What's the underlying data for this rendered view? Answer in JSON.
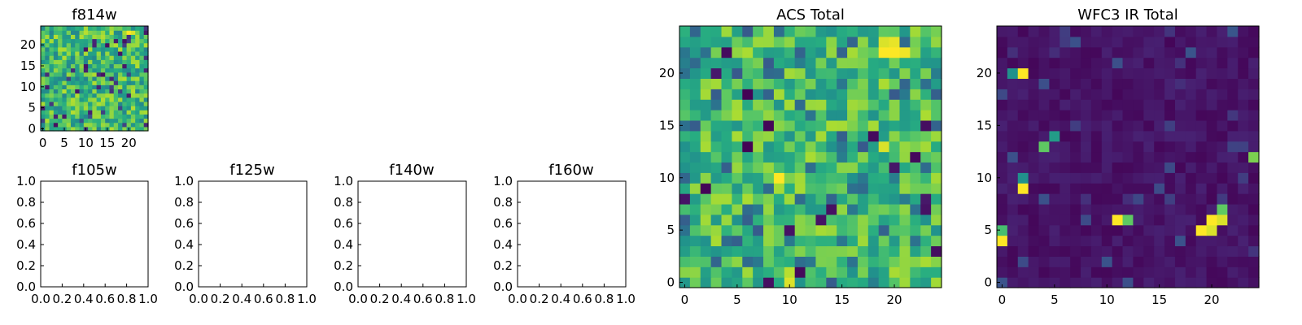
{
  "colors": {
    "background": "#ffffff",
    "frame": "#000000",
    "colormap": "viridis",
    "viridis_low": "#440154",
    "viridis_high": "#fde725"
  },
  "chart_data": [
    {
      "type": "heatmap",
      "title": "f814w",
      "shape": [
        25,
        25
      ],
      "xlim": [
        -0.5,
        24.5
      ],
      "ylim": [
        -0.5,
        24.5
      ],
      "xticks": [
        0,
        5,
        10,
        15,
        20
      ],
      "yticks": [
        0,
        5,
        10,
        15,
        20
      ],
      "colormap": "viridis",
      "description_level": "noise field",
      "hotspots": [
        {
          "x": 20,
          "y": 23,
          "level": 1.0
        },
        {
          "x": 21,
          "y": 23,
          "level": 0.95
        },
        {
          "x": 10,
          "y": 1,
          "level": 0.85
        }
      ]
    },
    {
      "type": "heatmap",
      "title": "ACS Total",
      "shape": [
        25,
        25
      ],
      "xlim": [
        -0.5,
        24.5
      ],
      "ylim": [
        -0.5,
        24.5
      ],
      "xticks": [
        0,
        5,
        10,
        15,
        20
      ],
      "yticks": [
        0,
        5,
        10,
        15,
        20
      ],
      "colormap": "viridis",
      "hotspots": [
        {
          "x": 19,
          "y": 22,
          "level": 1.0
        },
        {
          "x": 20,
          "y": 22,
          "level": 1.0
        },
        {
          "x": 21,
          "y": 22,
          "level": 0.98
        },
        {
          "x": 19,
          "y": 23,
          "level": 0.95
        },
        {
          "x": 20,
          "y": 23,
          "level": 0.97
        },
        {
          "x": 9,
          "y": 10,
          "level": 1.0
        },
        {
          "x": 10,
          "y": 0,
          "level": 0.95
        },
        {
          "x": 10,
          "y": 1,
          "level": 0.9
        },
        {
          "x": 19,
          "y": 13,
          "level": 0.95
        }
      ]
    },
    {
      "type": "heatmap",
      "title": "WFC3 IR Total",
      "shape": [
        25,
        25
      ],
      "xlim": [
        -0.5,
        24.5
      ],
      "ylim": [
        -0.5,
        24.5
      ],
      "xticks": [
        0,
        5,
        10,
        15,
        20
      ],
      "yticks": [
        0,
        5,
        10,
        15,
        20
      ],
      "colormap": "viridis",
      "hotspots": [
        {
          "x": 2,
          "y": 20,
          "level": 1.0
        },
        {
          "x": 1,
          "y": 20,
          "level": 0.5
        },
        {
          "x": 2,
          "y": 9,
          "level": 1.0
        },
        {
          "x": 2,
          "y": 10,
          "level": 0.5
        },
        {
          "x": 4,
          "y": 13,
          "level": 0.75
        },
        {
          "x": 5,
          "y": 14,
          "level": 0.55
        },
        {
          "x": 11,
          "y": 6,
          "level": 1.0
        },
        {
          "x": 12,
          "y": 6,
          "level": 0.75
        },
        {
          "x": 20,
          "y": 6,
          "level": 1.0
        },
        {
          "x": 21,
          "y": 6,
          "level": 0.95
        },
        {
          "x": 19,
          "y": 5,
          "level": 1.0
        },
        {
          "x": 20,
          "y": 5,
          "level": 0.95
        },
        {
          "x": 21,
          "y": 7,
          "level": 0.75
        },
        {
          "x": 0,
          "y": 4,
          "level": 1.0
        },
        {
          "x": 0,
          "y": 5,
          "level": 0.7
        },
        {
          "x": 24,
          "y": 12,
          "level": 0.8
        }
      ]
    },
    {
      "type": "line",
      "title": "f105w",
      "xlim": [
        0.0,
        1.0
      ],
      "ylim": [
        0.0,
        1.0
      ],
      "series": []
    },
    {
      "type": "line",
      "title": "f125w",
      "xlim": [
        0.0,
        1.0
      ],
      "ylim": [
        0.0,
        1.0
      ],
      "series": []
    },
    {
      "type": "line",
      "title": "f140w",
      "xlim": [
        0.0,
        1.0
      ],
      "ylim": [
        0.0,
        1.0
      ],
      "series": []
    },
    {
      "type": "line",
      "title": "f160w",
      "xlim": [
        0.0,
        1.0
      ],
      "ylim": [
        0.0,
        1.0
      ],
      "series": []
    }
  ],
  "tick_labels": {
    "image_ticks": [
      "0",
      "5",
      "10",
      "15",
      "20"
    ],
    "unit_ticks": [
      "0.0",
      "0.2",
      "0.4",
      "0.6",
      "0.8",
      "1.0"
    ]
  }
}
